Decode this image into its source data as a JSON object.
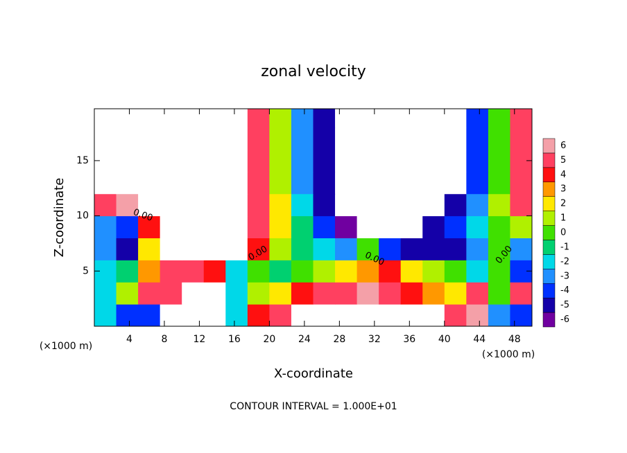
{
  "chart_data": {
    "type": "heatmap",
    "title": "zonal velocity",
    "x_label": "X-coordinate",
    "y_label": "Z-coordinate",
    "x_unit_left": "(×1000 m)",
    "x_unit_right": "(×1000 m)",
    "footer": "CONTOUR INTERVAL = 1.000E+01",
    "contour_labels": [
      "0.00",
      "0.00",
      "0.00",
      "0.00"
    ],
    "xlim": [
      0,
      50
    ],
    "ylim": [
      0,
      19.7
    ],
    "xticks": [
      4,
      8,
      12,
      16,
      20,
      24,
      28,
      32,
      36,
      40,
      44,
      48
    ],
    "yticks": [
      5,
      10,
      15
    ],
    "x": [
      1.25,
      3.75,
      6.25,
      8.75,
      11.25,
      13.75,
      16.25,
      18.75,
      21.25,
      23.75,
      26.25,
      28.75,
      31.25,
      33.75,
      36.25,
      38.75,
      41.25,
      43.75,
      46.25,
      48.75
    ],
    "z": [
      1,
      3,
      5,
      7,
      9,
      11,
      13,
      15,
      17,
      19
    ],
    "values": [
      [
        -2,
        -4,
        -4,
        -8,
        -8,
        -8,
        -2,
        4,
        5,
        8,
        8,
        8,
        8,
        8,
        8,
        8,
        5,
        6,
        -3,
        -4
      ],
      [
        -2,
        1,
        5,
        5,
        -8,
        -8,
        -2,
        1,
        2,
        4,
        5,
        5,
        6,
        5,
        4,
        3,
        2,
        5,
        0,
        5
      ],
      [
        -2,
        -1,
        3,
        5,
        5,
        4,
        -2,
        0,
        -1,
        0,
        1,
        2,
        3,
        4,
        2,
        1,
        0,
        -2,
        0,
        -4
      ],
      [
        -3,
        -5,
        2,
        8,
        8,
        8,
        8,
        4,
        1,
        -1,
        -2,
        -3,
        0,
        -4,
        -5,
        -5,
        -5,
        -3,
        0,
        -3
      ],
      [
        -3,
        -4,
        4,
        8,
        8,
        8,
        8,
        5,
        2,
        -1,
        -4,
        -6,
        -8,
        -8,
        -8,
        -5,
        -4,
        -2,
        0,
        1
      ],
      [
        5,
        6,
        8,
        8,
        8,
        8,
        8,
        5,
        2,
        -2,
        -5,
        -8,
        -8,
        -8,
        -8,
        -8,
        -5,
        -3,
        1,
        5
      ],
      [
        8,
        8,
        8,
        8,
        8,
        8,
        8,
        5,
        1,
        -3,
        -5,
        -8,
        -8,
        -8,
        -8,
        -8,
        -8,
        -4,
        0,
        5
      ],
      [
        8,
        8,
        8,
        8,
        8,
        8,
        8,
        5,
        1,
        -3,
        -5,
        -8,
        -8,
        -8,
        -8,
        -8,
        -8,
        -4,
        0,
        5
      ],
      [
        8,
        8,
        8,
        8,
        8,
        8,
        8,
        5,
        1,
        -3,
        -5,
        -8,
        -8,
        -8,
        -8,
        -8,
        -8,
        -4,
        0,
        5
      ],
      [
        8,
        8,
        8,
        8,
        8,
        8,
        8,
        5,
        1,
        -3,
        -5,
        -8,
        -8,
        -8,
        -8,
        -8,
        -8,
        -4,
        0,
        5
      ]
    ],
    "colorbar": {
      "levels": [
        -6,
        -5,
        -4,
        -3,
        -2,
        -1,
        0,
        1,
        2,
        3,
        4,
        5,
        6
      ],
      "colors": [
        "#7000a0",
        "#1400a8",
        "#0030ff",
        "#2090ff",
        "#00d8e8",
        "#00d070",
        "#40e000",
        "#b0f000",
        "#ffe800",
        "#ff9800",
        "#ff1010",
        "#ff4060",
        "#f4a0a8"
      ]
    }
  }
}
